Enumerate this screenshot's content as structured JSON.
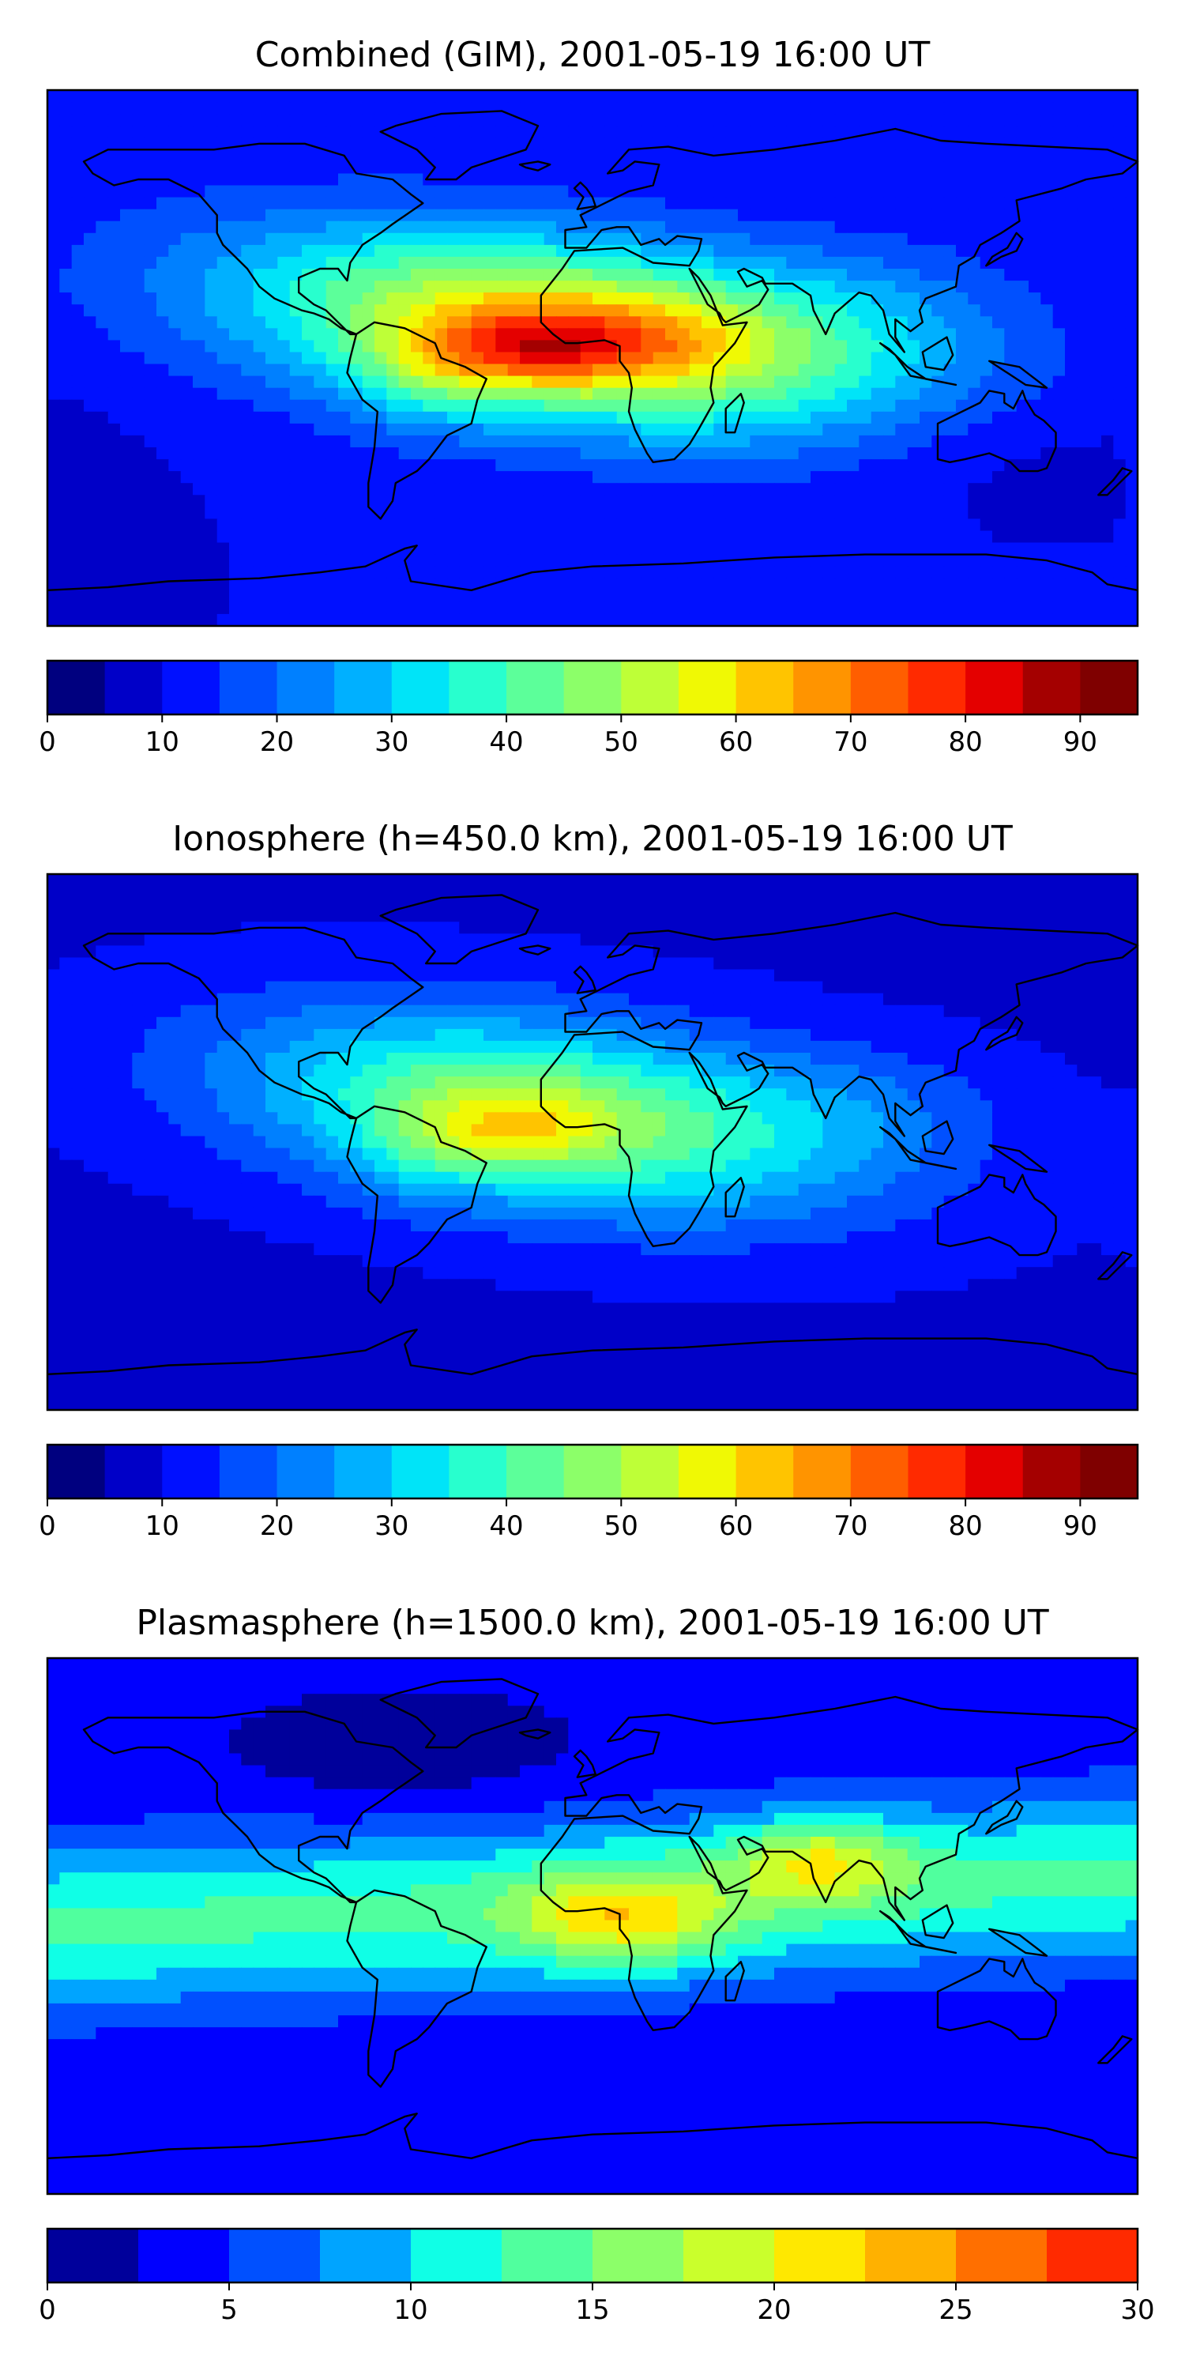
{
  "chart_data": [
    {
      "type": "heatmap",
      "title": "Combined (GIM), 2001-05-19 16:00 UT",
      "colorbar": {
        "levels": [
          0,
          5,
          10,
          15,
          20,
          25,
          30,
          35,
          40,
          45,
          50,
          55,
          60,
          65,
          70,
          75,
          80,
          85,
          90,
          95
        ],
        "ticks": [
          0,
          10,
          20,
          30,
          40,
          50,
          60,
          70,
          80,
          90
        ],
        "tick_labels": [
          "0",
          "10",
          "20",
          "30",
          "40",
          "50",
          "60",
          "70",
          "80",
          "90"
        ],
        "colors": [
          "#00007f",
          "#0000c8",
          "#0010ff",
          "#0050ff",
          "#0080ff",
          "#00b0ff",
          "#00e4f8",
          "#28ffce",
          "#5cff9a",
          "#8cff69",
          "#beff37",
          "#f0f904",
          "#ffc400",
          "#ff9400",
          "#ff5e00",
          "#ff2a00",
          "#e40000",
          "#a40000",
          "#7f0000"
        ]
      },
      "features": [
        {
          "name": "main-peak",
          "lon": -20,
          "lat": 3,
          "value": 82
        },
        {
          "name": "peak-west",
          "lon": -60,
          "lat": -2,
          "value": 64
        },
        {
          "name": "peak-africa",
          "lon": 15,
          "lat": 5,
          "value": 72
        }
      ],
      "background_value": 13
    },
    {
      "type": "heatmap",
      "title": "Ionosphere  (h=450.0 km), 2001-05-19 16:00 UT",
      "colorbar": {
        "levels": [
          0,
          5,
          10,
          15,
          20,
          25,
          30,
          35,
          40,
          45,
          50,
          55,
          60,
          65,
          70,
          75,
          80,
          85,
          90,
          95
        ],
        "ticks": [
          0,
          10,
          20,
          30,
          40,
          50,
          60,
          70,
          80,
          90
        ],
        "tick_labels": [
          "0",
          "10",
          "20",
          "30",
          "40",
          "50",
          "60",
          "70",
          "80",
          "90"
        ],
        "colors": [
          "#00007f",
          "#0000c8",
          "#0010ff",
          "#0050ff",
          "#0080ff",
          "#00b0ff",
          "#00e4f8",
          "#28ffce",
          "#5cff9a",
          "#8cff69",
          "#beff37",
          "#f0f904",
          "#ffc400",
          "#ff9400",
          "#ff5e00",
          "#ff2a00",
          "#e40000",
          "#a40000",
          "#7f0000"
        ]
      },
      "features": [
        {
          "name": "main-peak",
          "lon": -25,
          "lat": 4,
          "value": 64
        },
        {
          "name": "peak-west",
          "lon": -60,
          "lat": -3,
          "value": 58
        },
        {
          "name": "peak-africa",
          "lon": 10,
          "lat": 6,
          "value": 55
        }
      ],
      "background_value": 12
    },
    {
      "type": "heatmap",
      "title": "Plasmasphere (h=1500.0 km), 2001-05-19 16:00 UT",
      "colorbar": {
        "levels": [
          0,
          2.5,
          5,
          7.5,
          10,
          12.5,
          15,
          17.5,
          20,
          22.5,
          25,
          27.5,
          30
        ],
        "ticks": [
          0,
          5,
          10,
          15,
          20,
          25,
          30
        ],
        "tick_labels": [
          "0",
          "5",
          "10",
          "15",
          "20",
          "25",
          "30"
        ],
        "colors": [
          "#00009b",
          "#0000ff",
          "#0050ff",
          "#00a4ff",
          "#10ffe6",
          "#50ff9e",
          "#8cff69",
          "#caff2c",
          "#ffe800",
          "#ffb100",
          "#ff6f00",
          "#ff2a00",
          "#a80000"
        ]
      },
      "features": [
        {
          "name": "peak-africa",
          "lon": 10,
          "lat": 5,
          "value": 22
        },
        {
          "name": "peak-india",
          "lon": 75,
          "lat": 22,
          "value": 21
        },
        {
          "name": "band-west",
          "lon": -40,
          "lat": 0,
          "value": 13
        }
      ],
      "background_value": 4
    }
  ]
}
